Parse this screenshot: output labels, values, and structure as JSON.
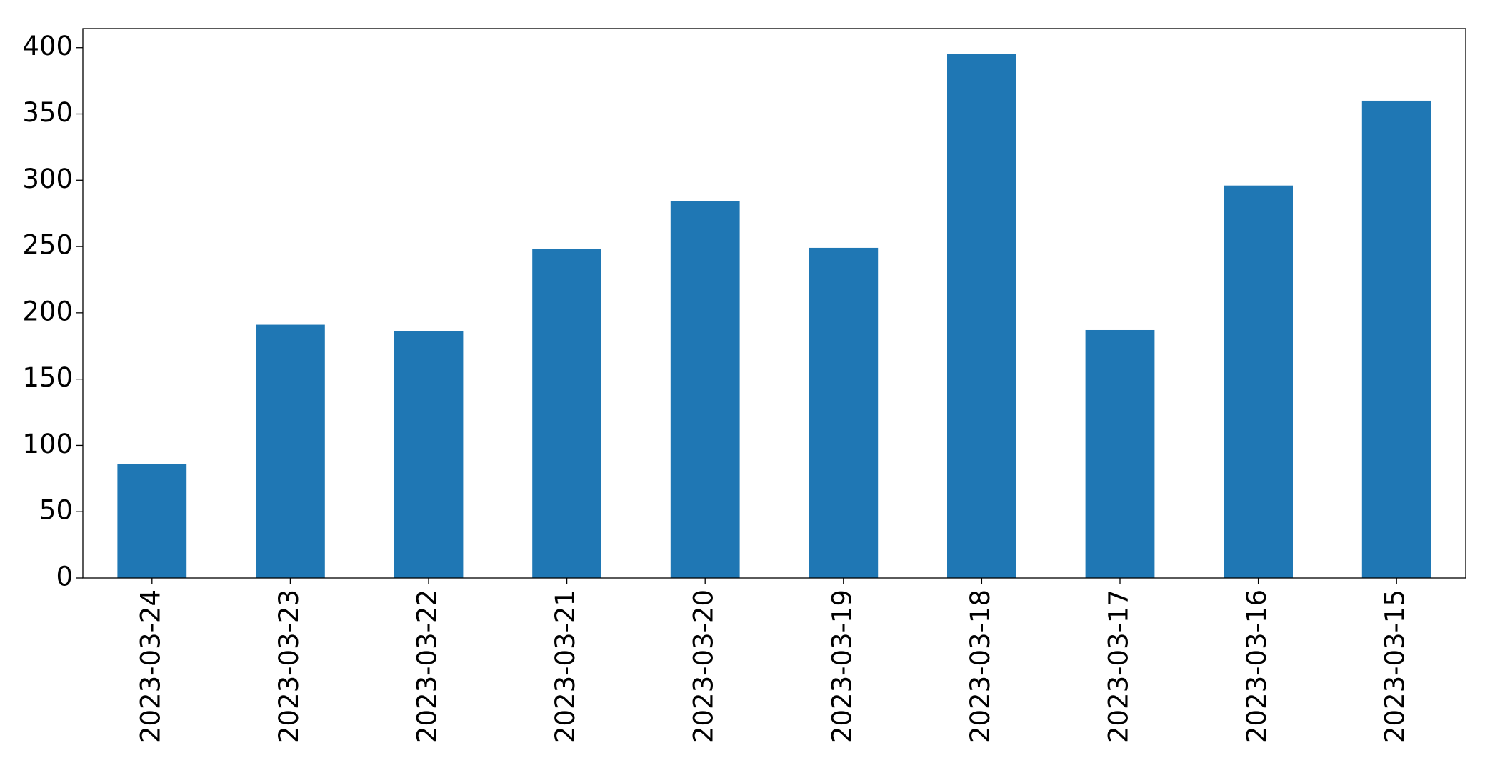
{
  "chart_data": {
    "type": "bar",
    "categories": [
      "2023-03-24",
      "2023-03-23",
      "2023-03-22",
      "2023-03-21",
      "2023-03-20",
      "2023-03-19",
      "2023-03-18",
      "2023-03-17",
      "2023-03-16",
      "2023-03-15"
    ],
    "values": [
      86,
      191,
      186,
      248,
      284,
      249,
      395,
      187,
      296,
      360
    ],
    "color": "#1f77b4",
    "ylim": [
      0,
      414.4
    ],
    "yticks": [
      0,
      50,
      100,
      150,
      200,
      250,
      300,
      350,
      400
    ],
    "grid": false
  }
}
